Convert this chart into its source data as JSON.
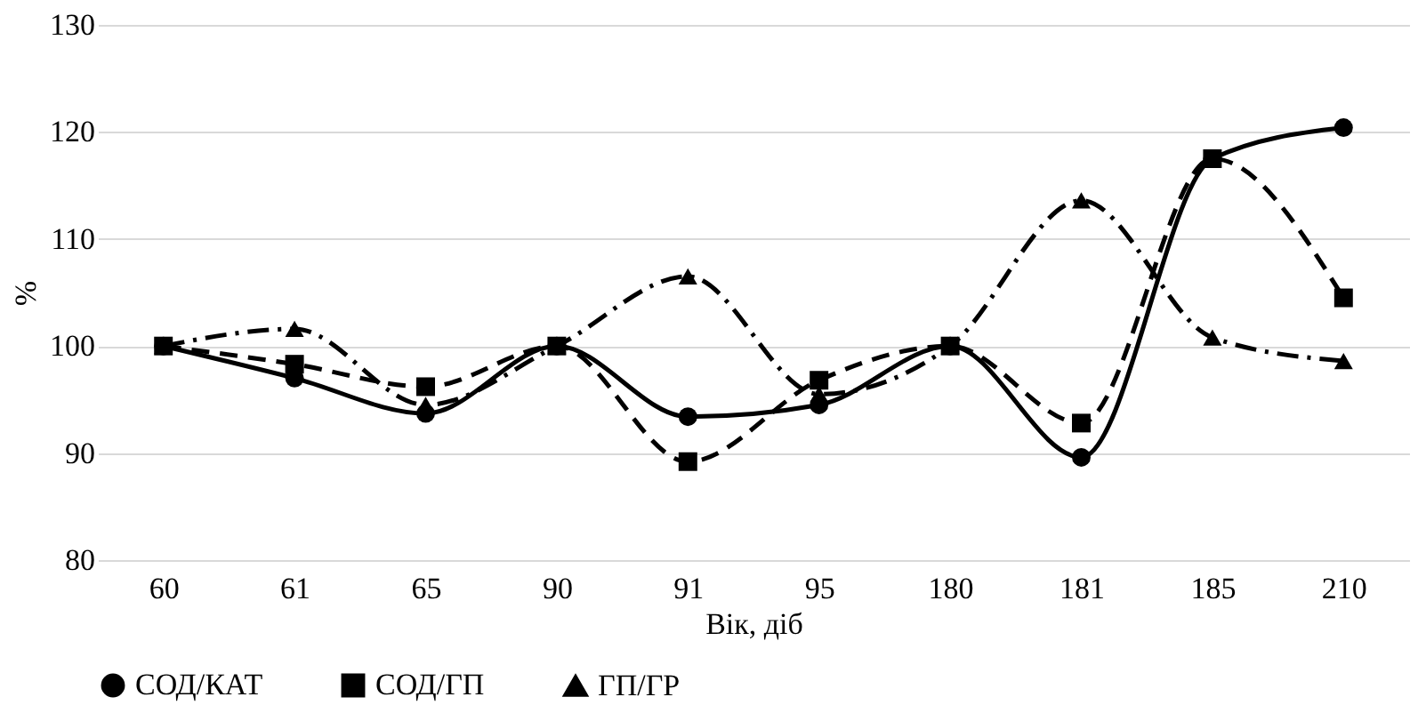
{
  "chart_data": {
    "type": "line",
    "xlabel": "Вік, діб",
    "ylabel": "%",
    "categories": [
      "60",
      "61",
      "65",
      "90",
      "91",
      "95",
      "180",
      "181",
      "185",
      "210"
    ],
    "ylim": [
      80,
      130
    ],
    "yticks": [
      80,
      90,
      100,
      110,
      120,
      130
    ],
    "grid": "y",
    "legend": "bottom",
    "series": [
      {
        "name": "СОД/КАТ",
        "color": "#000000",
        "marker": "circle",
        "line_style": "solid",
        "values": [
          100,
          97.0,
          93.7,
          100,
          93.4,
          94.5,
          100,
          89.6,
          117.5,
          120.4
        ]
      },
      {
        "name": "СОД/ГП",
        "color": "#000000",
        "marker": "square",
        "line_style": "dashed",
        "values": [
          100,
          98.3,
          96.2,
          100,
          89.2,
          96.8,
          100,
          92.8,
          117.5,
          104.5
        ]
      },
      {
        "name": "ГП/ГР",
        "color": "#000000",
        "marker": "triangle",
        "line_style": "dashdot",
        "values": [
          100,
          101.6,
          94.5,
          100,
          106.5,
          95.5,
          100,
          113.6,
          100.8,
          98.6
        ]
      }
    ]
  }
}
